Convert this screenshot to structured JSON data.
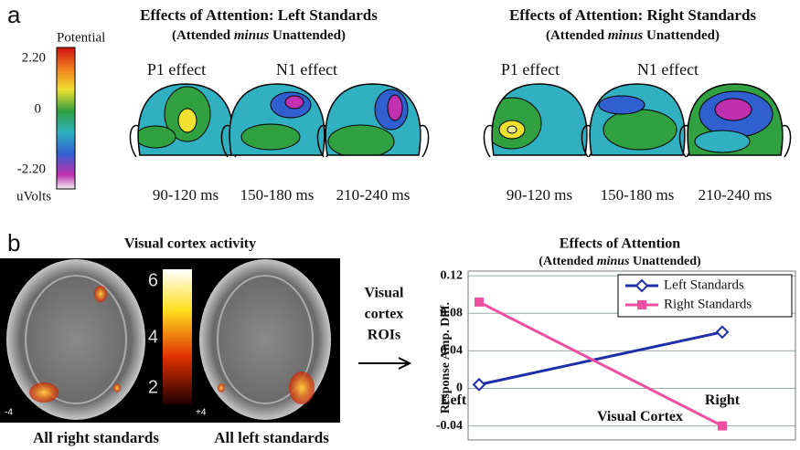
{
  "panel_a": {
    "label": "a",
    "legend_title": "Potential",
    "legend_ticks": [
      "2.20",
      "0",
      "-2.20"
    ],
    "legend_unit": "uVolts",
    "groups": [
      {
        "title": "Effects of Attention: Left Standards",
        "subtitle_parts": [
          "(Attended ",
          "minus",
          " Unattended)"
        ],
        "effects": [
          "P1 effect",
          "N1 effect"
        ],
        "times": [
          "90-120 ms",
          "150-180 ms",
          "210-240 ms"
        ]
      },
      {
        "title": "Effects of Attention: Right Standards",
        "subtitle_parts": [
          "(Attended ",
          "minus",
          " Unattended)"
        ],
        "effects": [
          "P1 effect",
          "N1 effect"
        ],
        "times": [
          "90-120 ms",
          "150-180 ms",
          "210-240 ms"
        ]
      }
    ]
  },
  "panel_b": {
    "label": "b",
    "title": "Visual cortex activity",
    "scale_ticks": [
      "6",
      "4",
      "2"
    ],
    "slice_labels": [
      "-4",
      "+4"
    ],
    "captions": [
      "All right standards",
      "All left standards"
    ],
    "arrow_text": [
      "Visual",
      "cortex",
      "ROIs"
    ]
  },
  "chart_data": {
    "type": "line",
    "title": "Effects of Attention",
    "subtitle_parts": [
      "(Attended ",
      "minus",
      " Unattended)"
    ],
    "x_label": "Visual Cortex",
    "y_label": "Response Amp. Diff.",
    "categories": [
      "Left",
      "Right"
    ],
    "series": [
      {
        "name": "Left Standards",
        "color": "#1f2fa8",
        "marker": "diamond",
        "values": [
          0.004,
          0.06
        ]
      },
      {
        "name": "Right Standards",
        "color": "#ee4fa0",
        "marker": "square",
        "values": [
          0.092,
          -0.04
        ]
      }
    ],
    "ylim": [
      -0.055,
      0.125
    ],
    "yticks": [
      -0.04,
      0,
      0.04,
      0.08,
      0.12
    ],
    "grid": true,
    "legend": "top-right"
  }
}
